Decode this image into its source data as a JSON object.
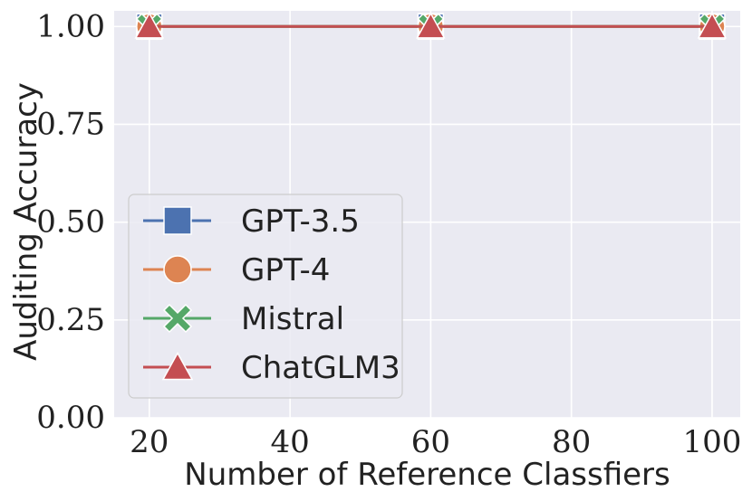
{
  "chart_data": {
    "type": "line",
    "xlabel": "Number of Reference Classfiers",
    "ylabel": "Auditing Accuracy",
    "xlim": [
      15,
      104
    ],
    "ylim": [
      0,
      1.04
    ],
    "x_ticks": [
      20,
      40,
      60,
      80,
      100
    ],
    "x_tick_labels": [
      "20",
      "40",
      "60",
      "80",
      "100"
    ],
    "y_ticks": [
      0,
      0.25,
      0.5,
      0.75,
      1.0
    ],
    "y_tick_labels": [
      "0.00",
      "0.25",
      "0.50",
      "0.75",
      "1.00"
    ],
    "grid": true,
    "legend_position": "lower-left",
    "x": [
      20,
      60,
      100
    ],
    "series": [
      {
        "name": "GPT-3.5",
        "values": [
          1.0,
          1.0,
          1.0
        ],
        "color": "#4c72b0",
        "marker": "square"
      },
      {
        "name": "GPT-4",
        "values": [
          1.0,
          1.0,
          1.0
        ],
        "color": "#dd8452",
        "marker": "circle"
      },
      {
        "name": "Mistral",
        "values": [
          1.0,
          1.0,
          1.0
        ],
        "color": "#55a868",
        "marker": "x"
      },
      {
        "name": "ChatGLM3",
        "values": [
          1.0,
          1.0,
          1.0
        ],
        "color": "#c44e52",
        "marker": "triangle"
      }
    ],
    "background_color": "#eaeaf2",
    "grid_color": "#ffffff"
  }
}
